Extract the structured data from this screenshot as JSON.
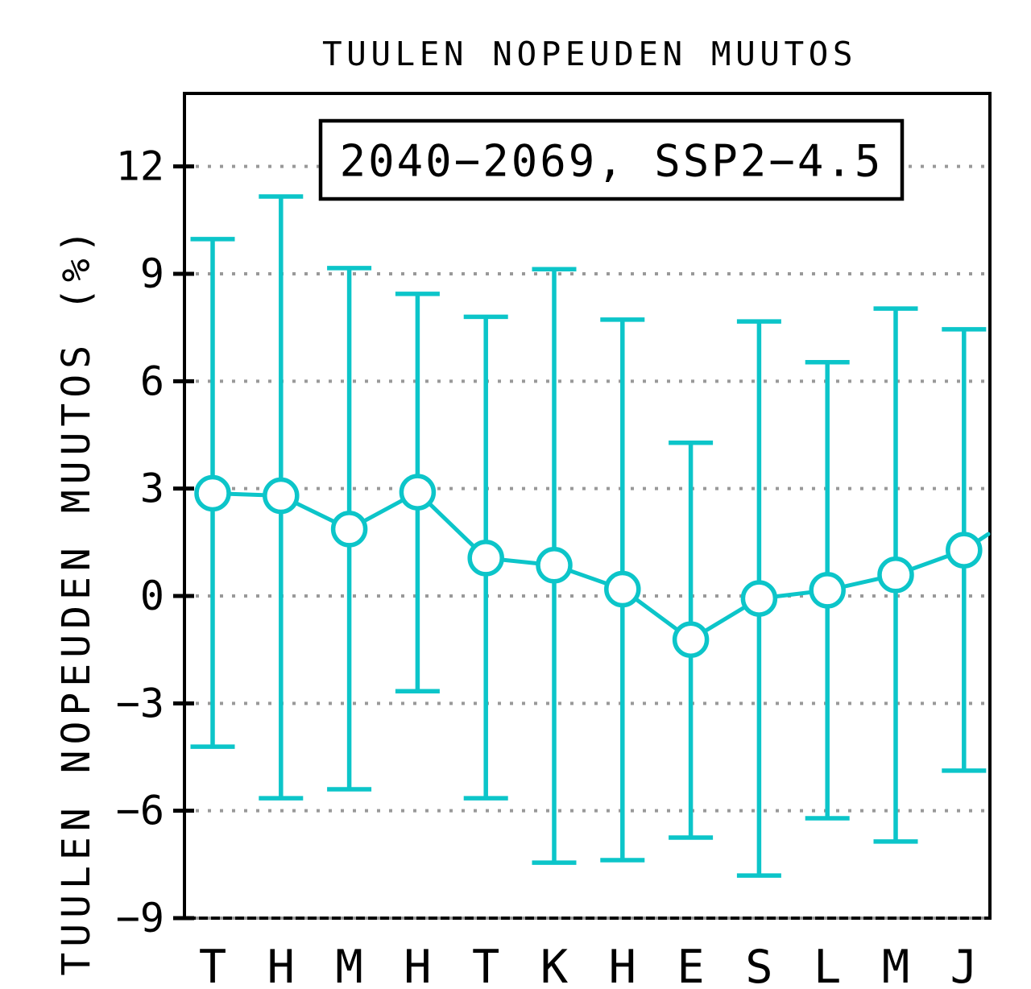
{
  "page": {
    "background": "#FFFFFF"
  },
  "chart_data": {
    "type": "line",
    "title": "TUULEN NOPEUDEN MUUTOS",
    "ylabel": "TUULEN NOPEUDEN MUUTOS (%)",
    "xlabel": "",
    "annotation": "2040−2069, SSP2−4.5",
    "annotation_position": "top-center-boxed",
    "categories": [
      "T",
      "H",
      "M",
      "H",
      "T",
      "K",
      "H",
      "E",
      "S",
      "L",
      "M",
      "J"
    ],
    "series": [
      {
        "name": "2040−2069, SSP2−4.5",
        "values": [
          2.87,
          2.8,
          1.87,
          2.9,
          1.06,
          0.86,
          0.19,
          -1.22,
          -0.07,
          0.16,
          0.59,
          1.28
        ],
        "err_lo": [
          -4.21,
          -5.65,
          -5.4,
          -2.66,
          -5.65,
          -7.45,
          -7.38,
          -6.75,
          -7.81,
          -6.21,
          -6.86,
          -4.88
        ],
        "err_hi": [
          9.97,
          11.16,
          9.16,
          8.44,
          7.8,
          9.13,
          7.72,
          4.28,
          7.67,
          6.53,
          8.03,
          7.45
        ],
        "edge_extension_value": 1.73,
        "marker": "open-circle"
      }
    ],
    "yticks": [
      {
        "value": 12,
        "label": "12"
      },
      {
        "value": 9,
        "label": "9"
      },
      {
        "value": 6,
        "label": "6"
      },
      {
        "value": 3,
        "label": "3"
      },
      {
        "value": 0,
        "label": "0"
      },
      {
        "value": -3,
        "label": "−3"
      },
      {
        "value": -6,
        "label": "−6"
      },
      {
        "value": -9,
        "label": "−9"
      }
    ],
    "ylim": [
      -9,
      14.04
    ],
    "grid": "dotted-horizontal",
    "colors": {
      "series": "#0CC5C9",
      "marker_fill": "#FFFFFF",
      "grid": "#999999",
      "axis": "#000000",
      "text": "#000000",
      "annotation_box_fill": "#FFFFFF"
    }
  }
}
